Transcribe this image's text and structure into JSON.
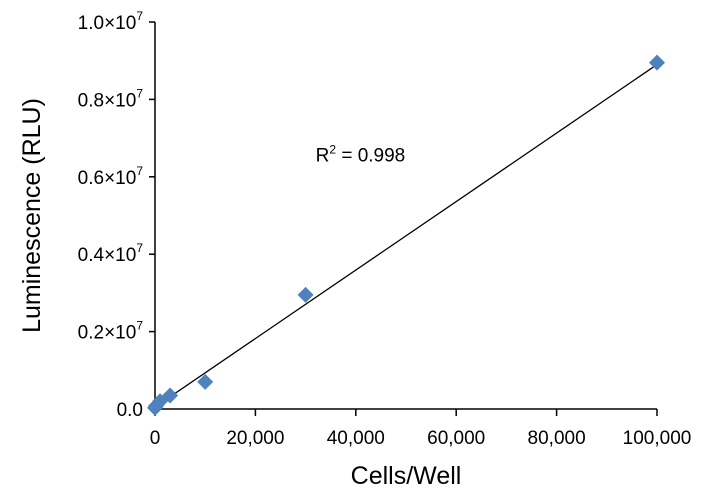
{
  "chart_data": {
    "type": "scatter",
    "title": "",
    "xlabel": "Cells/Well",
    "ylabel": "Luminescence (RLU)",
    "xlim": [
      0,
      100000
    ],
    "ylim": [
      0,
      10000000
    ],
    "x_ticks": [
      0,
      20000,
      40000,
      60000,
      80000,
      100000
    ],
    "x_tick_labels": [
      "0",
      "20,000",
      "40,000",
      "60,000",
      "80,000",
      "100,000"
    ],
    "y_ticks": [
      0,
      2000000,
      4000000,
      6000000,
      8000000,
      10000000
    ],
    "y_tick_labels": [
      {
        "mantissa": "0.0",
        "exp": ""
      },
      {
        "mantissa": "0.2×10",
        "exp": "7"
      },
      {
        "mantissa": "0.4×10",
        "exp": "7"
      },
      {
        "mantissa": "0.6×10",
        "exp": "7"
      },
      {
        "mantissa": "0.8×10",
        "exp": "7"
      },
      {
        "mantissa": "1.0×10",
        "exp": "7"
      }
    ],
    "series": [
      {
        "name": "Luminescence",
        "marker": "diamond",
        "color": "#4F81BD",
        "x": [
          0,
          200,
          1000,
          3000,
          10000,
          30000,
          100000
        ],
        "y": [
          30000,
          80000,
          200000,
          350000,
          700000,
          2950000,
          8950000
        ]
      }
    ],
    "trendline": {
      "type": "linear",
      "color": "#000000",
      "x": [
        0,
        100000
      ],
      "y": [
        50000,
        8900000
      ]
    },
    "annotation": {
      "prefix": "R",
      "sup": "2",
      "suffix": " = 0.998",
      "at_x": 32000,
      "at_y": 6400000
    },
    "grid": false,
    "legend": "none"
  }
}
